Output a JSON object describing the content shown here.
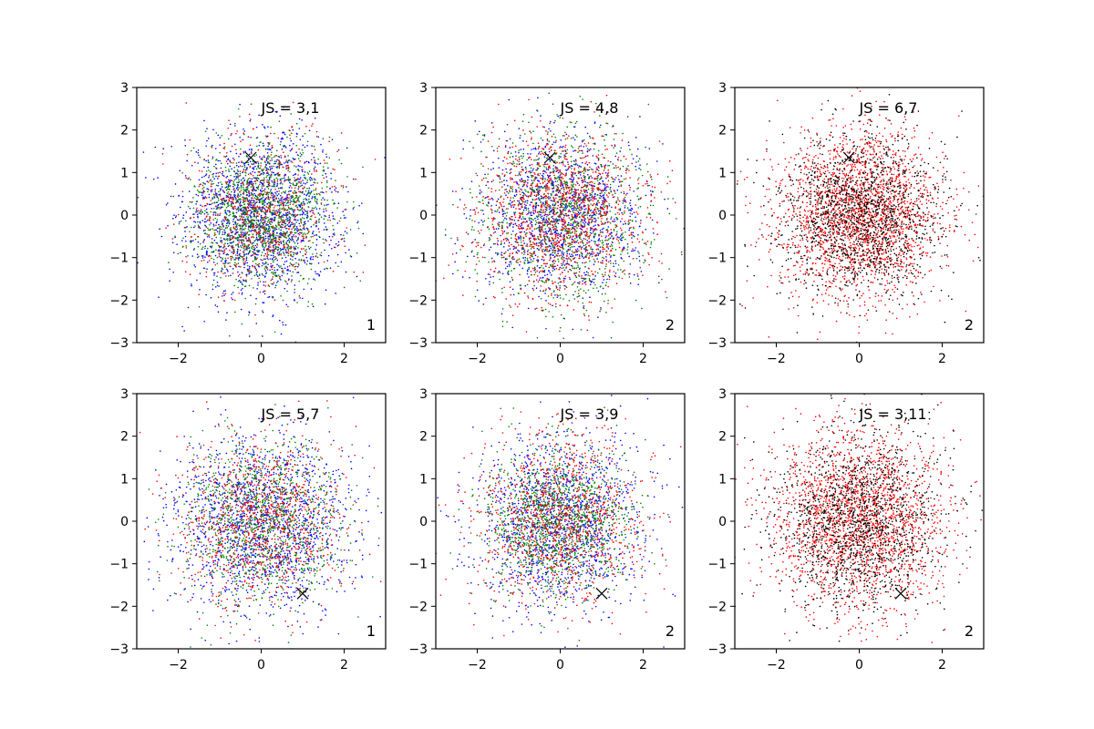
{
  "chart_data": [
    {
      "type": "scatter",
      "xlim": [
        -3,
        3
      ],
      "ylim": [
        -3,
        3
      ],
      "x_ticks": [
        -2,
        0,
        2
      ],
      "y_ticks": [
        -3,
        -2,
        -1,
        0,
        1,
        2,
        3
      ],
      "x_tick_labels": [
        "−2",
        "0",
        "2"
      ],
      "y_tick_labels": [
        "−3",
        "−2",
        "−1",
        "0",
        "1",
        "2",
        "3"
      ],
      "grid": false,
      "annotation": "JS = 3,1",
      "corner_label": "1",
      "marker": {
        "x": -0.25,
        "y": 1.35,
        "symbol": "x",
        "color": "#000000"
      },
      "series": [
        {
          "color": "#0000ff",
          "count": 1600,
          "spread": 0.95
        },
        {
          "color": "#008000",
          "count": 1400,
          "spread": 0.8
        },
        {
          "color": "#ff0000",
          "count": 700,
          "spread": 0.9
        }
      ]
    },
    {
      "type": "scatter",
      "xlim": [
        -3,
        3
      ],
      "ylim": [
        -3,
        3
      ],
      "x_ticks": [
        -2,
        0,
        2
      ],
      "y_ticks": [
        -3,
        -2,
        -1,
        0,
        1,
        2,
        3
      ],
      "x_tick_labels": [
        "−2",
        "0",
        "2"
      ],
      "y_tick_labels": [
        "−3",
        "−2",
        "−1",
        "0",
        "1",
        "2",
        "3"
      ],
      "grid": false,
      "annotation": "JS = 4,8",
      "corner_label": "2",
      "marker": {
        "x": -0.25,
        "y": 1.35,
        "symbol": "x",
        "color": "#000000"
      },
      "series": [
        {
          "color": "#0000ff",
          "count": 1300,
          "spread": 0.95
        },
        {
          "color": "#008000",
          "count": 1200,
          "spread": 1.0
        },
        {
          "color": "#ff0000",
          "count": 1300,
          "spread": 1.0
        }
      ]
    },
    {
      "type": "scatter",
      "xlim": [
        -3,
        3
      ],
      "ylim": [
        -3,
        3
      ],
      "x_ticks": [
        -2,
        0,
        2
      ],
      "y_ticks": [
        -3,
        -2,
        -1,
        0,
        1,
        2,
        3
      ],
      "x_tick_labels": [
        "−2",
        "0",
        "2"
      ],
      "y_tick_labels": [
        "−3",
        "−2",
        "−1",
        "0",
        "1",
        "2",
        "3"
      ],
      "grid": false,
      "annotation": "JS = 6,7",
      "corner_label": "2",
      "marker": {
        "x": -0.25,
        "y": 1.35,
        "symbol": "x",
        "color": "#000000"
      },
      "series": [
        {
          "color": "#ff0000",
          "count": 2200,
          "spread": 1.0
        },
        {
          "color": "#000000",
          "count": 1500,
          "spread": 0.95
        }
      ]
    },
    {
      "type": "scatter",
      "xlim": [
        -3,
        3
      ],
      "ylim": [
        -3,
        3
      ],
      "x_ticks": [
        -2,
        0,
        2
      ],
      "y_ticks": [
        -3,
        -2,
        -1,
        0,
        1,
        2,
        3
      ],
      "x_tick_labels": [
        "−2",
        "0",
        "2"
      ],
      "y_tick_labels": [
        "−3",
        "−2",
        "−1",
        "0",
        "1",
        "2",
        "3"
      ],
      "grid": false,
      "annotation": "JS = 5,7",
      "corner_label": "1",
      "marker": {
        "x": 1.0,
        "y": -1.7,
        "symbol": "x",
        "color": "#000000"
      },
      "series": [
        {
          "color": "#0000ff",
          "count": 1500,
          "spread": 1.05
        },
        {
          "color": "#008000",
          "count": 1200,
          "spread": 0.95
        },
        {
          "color": "#ff0000",
          "count": 1000,
          "spread": 1.0
        }
      ]
    },
    {
      "type": "scatter",
      "xlim": [
        -3,
        3
      ],
      "ylim": [
        -3,
        3
      ],
      "x_ticks": [
        -2,
        0,
        2
      ],
      "y_ticks": [
        -3,
        -2,
        -1,
        0,
        1,
        2,
        3
      ],
      "x_tick_labels": [
        "−2",
        "0",
        "2"
      ],
      "y_tick_labels": [
        "−3",
        "−2",
        "−1",
        "0",
        "1",
        "2",
        "3"
      ],
      "grid": false,
      "annotation": "JS = 3,9",
      "corner_label": "2",
      "marker": {
        "x": 1.0,
        "y": -1.7,
        "symbol": "x",
        "color": "#000000"
      },
      "series": [
        {
          "color": "#0000ff",
          "count": 1400,
          "spread": 1.0
        },
        {
          "color": "#008000",
          "count": 1300,
          "spread": 0.85
        },
        {
          "color": "#ff0000",
          "count": 1100,
          "spread": 1.0
        }
      ]
    },
    {
      "type": "scatter",
      "xlim": [
        -3,
        3
      ],
      "ylim": [
        -3,
        3
      ],
      "x_ticks": [
        -2,
        0,
        2
      ],
      "y_ticks": [
        -3,
        -2,
        -1,
        0,
        1,
        2,
        3
      ],
      "x_tick_labels": [
        "−2",
        "0",
        "2"
      ],
      "y_tick_labels": [
        "−3",
        "−2",
        "−1",
        "0",
        "1",
        "2",
        "3"
      ],
      "grid": false,
      "annotation": "JS = 3,11",
      "corner_label": "2",
      "marker": {
        "x": 1.0,
        "y": -1.7,
        "symbol": "x",
        "color": "#000000"
      },
      "series": [
        {
          "color": "#ff0000",
          "count": 2100,
          "spread": 1.05
        },
        {
          "color": "#000000",
          "count": 1500,
          "spread": 1.0
        }
      ]
    }
  ]
}
